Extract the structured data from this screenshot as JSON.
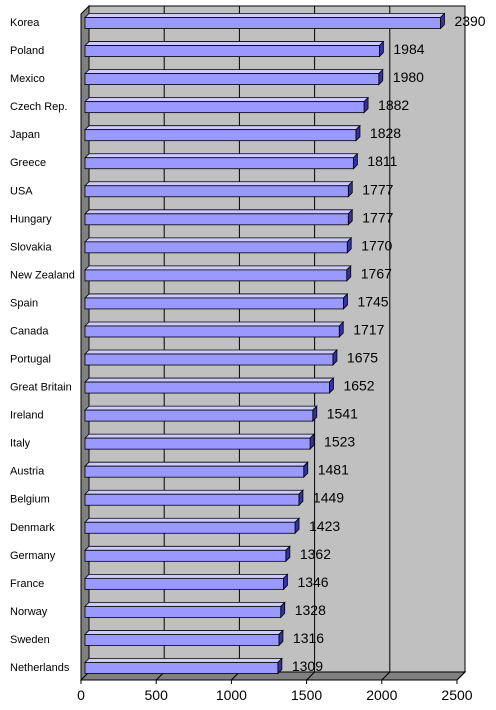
{
  "chart_data": {
    "type": "bar",
    "orientation": "horizontal",
    "categories": [
      "Korea",
      "Poland",
      "Mexico",
      "Czech Rep.",
      "Japan",
      "Greece",
      "USA",
      "Hungary",
      "Slovakia",
      "New Zealand",
      "Spain",
      "Canada",
      "Portugal",
      "Great Britain",
      "Ireland",
      "Italy",
      "Austria",
      "Belgium",
      "Denmark",
      "Germany",
      "France",
      "Norway",
      "Sweden",
      "Netherlands"
    ],
    "values": [
      2390,
      1984,
      1980,
      1882,
      1828,
      1811,
      1777,
      1777,
      1770,
      1767,
      1745,
      1717,
      1675,
      1652,
      1541,
      1523,
      1481,
      1449,
      1423,
      1362,
      1346,
      1328,
      1316,
      1309
    ],
    "data_labels": [
      "2390",
      "1984",
      "1980",
      "1882",
      "1828",
      "1811",
      "1777",
      "1777",
      "1770",
      "1767",
      "1745",
      "1717",
      "1675",
      "1652",
      "1541",
      "1523",
      "1481",
      "1449",
      "1423",
      "1362",
      "1346",
      "1328",
      "1316",
      "1309"
    ],
    "xlim": [
      0,
      2500
    ],
    "xticks": [
      "0",
      "500",
      "1000",
      "1500",
      "2000",
      "2500"
    ],
    "grid": true,
    "colors": {
      "bar_front": "#9999ff",
      "bar_top": "#ccccff",
      "bar_side": "#333399",
      "plot_back": "#c0c0c0",
      "plot_floor": "#808080",
      "gridline": "#000000"
    }
  }
}
